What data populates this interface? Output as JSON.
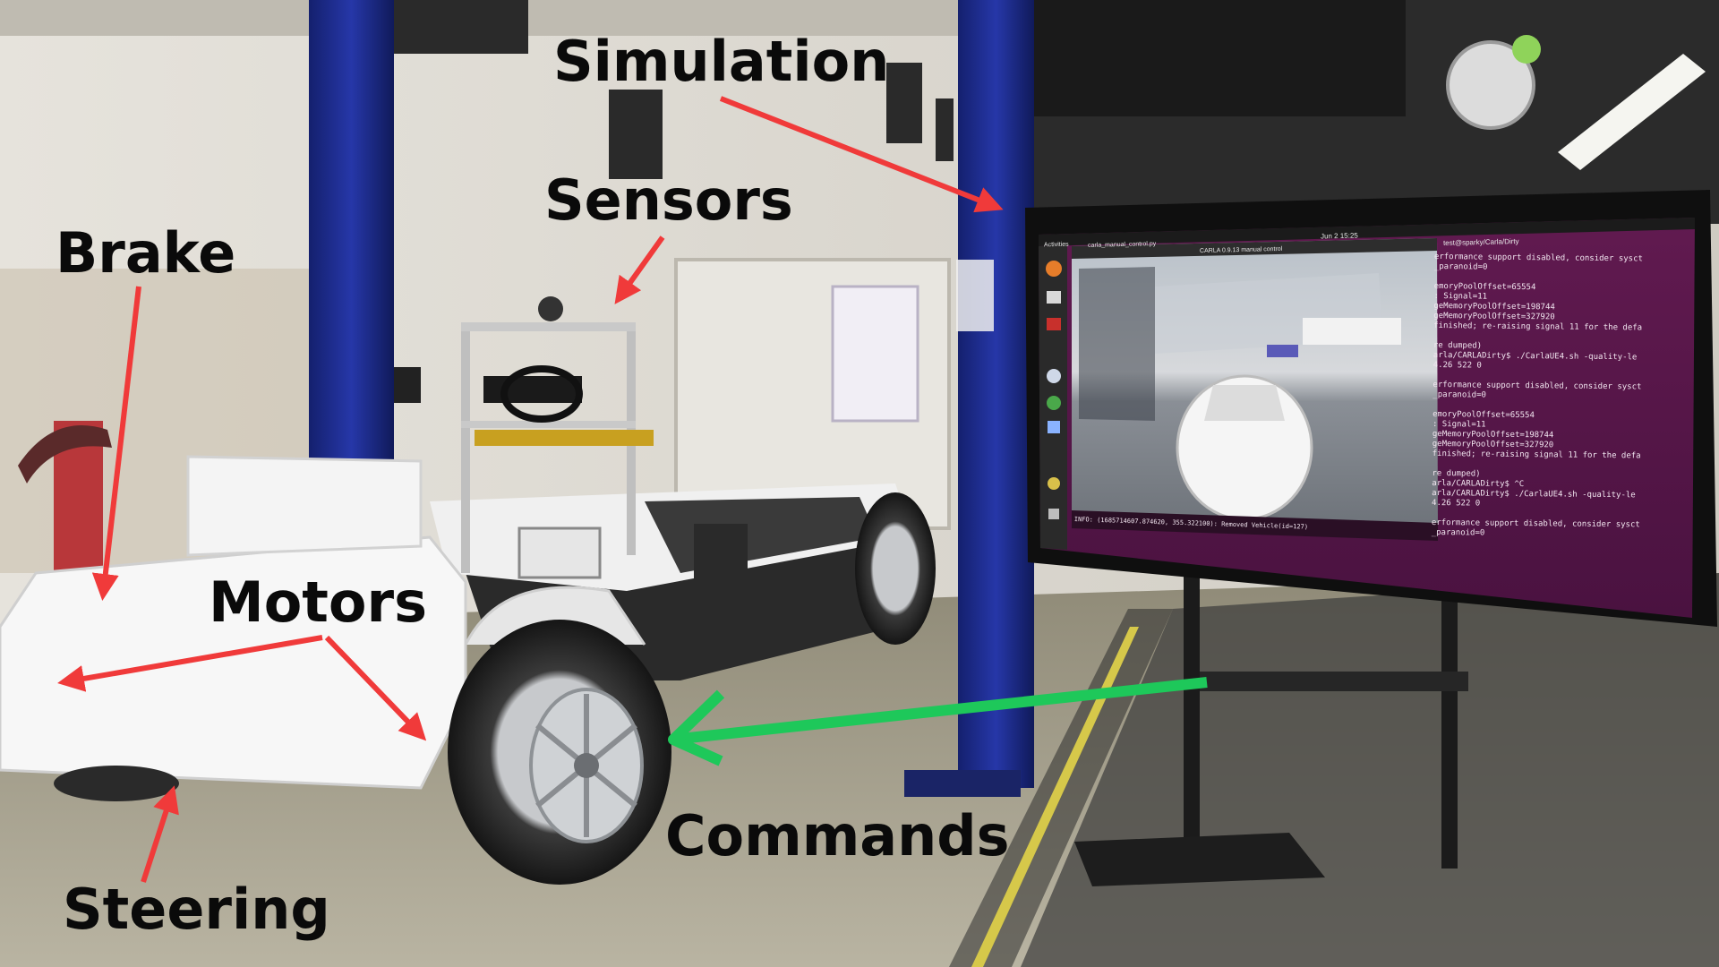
{
  "annotations": {
    "simulation": "Simulation",
    "sensors": "Sensors",
    "brake": "Brake",
    "motors": "Motors",
    "commands": "Commands",
    "steering": "Steering"
  },
  "screen": {
    "topbar": {
      "activities": "Activities",
      "app_name": "carla_manual_control.py",
      "clock": "Jun 2 15:25"
    },
    "sim_window_title": "CARLA 0.9.13 manual control",
    "terminal_title": "test@sparky/Carla/Dirty",
    "terminal_lines": [
      "erformance support disabled, consider sysct",
      "_paranoid=0",
      "",
      "emoryPoolOffset=65554",
      ": Signal=11",
      "geMemoryPoolOffset=198744",
      "geMemoryPoolOffset=327920",
      "finished; re-raising signal 11 for the defa",
      "",
      "re dumped)",
      "arla/CARLADirty$ ./CarlaUE4.sh -quality-le",
      "4.26 522 0",
      "",
      "erformance support disabled, consider sysct",
      "_paranoid=0",
      "",
      "emoryPoolOffset=65554",
      ": Signal=11",
      "geMemoryPoolOffset=198744",
      "geMemoryPoolOffset=327920",
      "finished; re-raising signal 11 for the defa",
      "",
      "re dumped)",
      "arla/CARLADirty$ ^C",
      "arla/CARLADirty$ ./CarlaUE4.sh -quality-le",
      "4.26 522 0",
      "",
      "erformance support disabled, consider sysct",
      "_paranoid=0"
    ],
    "console_line": "INFO: (1685714607.874620, 355.322100): Removed Vehicle(id=127)"
  },
  "colors": {
    "annotation_arrow": "#f03a3a",
    "command_arrow": "#1ec85a",
    "label_text": "#0a0a0a",
    "pillar": "#1c2a8a",
    "terminal_bg": "#5a1848"
  }
}
